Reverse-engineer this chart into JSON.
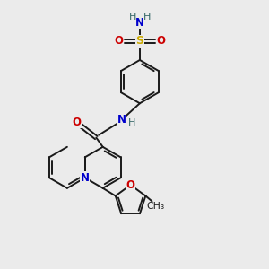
{
  "background_color": "#ebebeb",
  "bond_color": "#1a1a1a",
  "figsize": [
    3.0,
    3.0
  ],
  "dpi": 100,
  "lw": 1.4,
  "atom_colors": {
    "N": "#0000cc",
    "O": "#cc0000",
    "S": "#ccaa00",
    "H": "#336666",
    "C": "#1a1a1a"
  },
  "scale": 1.0
}
